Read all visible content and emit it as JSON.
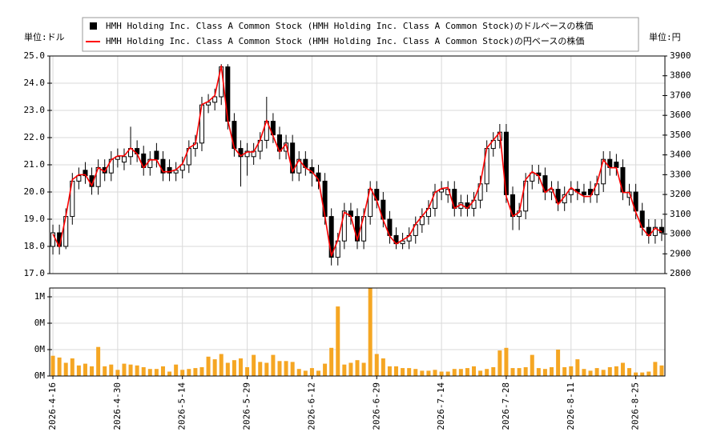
{
  "chart_data": [
    {
      "type": "candlestick",
      "y_label": "単位:ドル",
      "y2_label": "単位:円",
      "ylim": [
        17,
        25
      ],
      "yticks": [
        {
          "value": 17,
          "label": "17.0"
        },
        {
          "value": 18,
          "label": "18.0"
        },
        {
          "value": 19,
          "label": "19.0"
        },
        {
          "value": 20,
          "label": "20.0"
        },
        {
          "value": 21,
          "label": "21.0"
        },
        {
          "value": 22,
          "label": "22.0"
        },
        {
          "value": 23,
          "label": "23.0"
        },
        {
          "value": 24,
          "label": "24.0"
        },
        {
          "value": 25,
          "label": "25.0"
        }
      ],
      "y2lim": [
        2800,
        3900
      ],
      "y2ticks": [
        2800,
        2900,
        3000,
        3100,
        3200,
        3300,
        3400,
        3500,
        3600,
        3700,
        3800,
        3900
      ],
      "grid": true,
      "series": [
        {
          "name": "HMH Holding Inc. Class A Common Stock (HMH Holding Inc. Class A Common Stock)のドルベースの株価",
          "color": "#000000",
          "open": [
            18.0,
            18.5,
            18.0,
            19.1,
            20.4,
            20.8,
            20.6,
            20.2,
            20.9,
            20.7,
            21.2,
            21.1,
            21.3,
            21.6,
            21.4,
            20.9,
            21.5,
            21.2,
            20.9,
            20.7,
            20.8,
            21.0,
            21.6,
            21.8,
            23.2,
            23.3,
            23.5,
            24.6,
            22.6,
            21.6,
            21.3,
            21.3,
            21.5,
            21.9,
            22.6,
            22.1,
            21.5,
            21.8,
            20.7,
            21.2,
            20.9,
            20.7,
            20.4,
            19.1,
            17.6,
            18.2,
            19.3,
            19.1,
            18.2,
            19.1,
            20.1,
            19.7,
            19.0,
            18.4,
            18.1,
            18.2,
            18.4,
            18.8,
            19.1,
            19.4,
            20.0,
            19.9,
            20.1,
            19.4,
            19.6,
            19.4,
            19.7,
            20.3,
            21.6,
            21.9,
            22.2,
            19.9,
            19.1,
            19.3,
            20.4,
            20.7,
            20.6,
            20.0,
            20.1,
            19.6,
            19.9,
            20.1,
            20.0,
            20.1,
            19.9,
            20.3,
            21.2,
            21.1,
            20.9,
            19.8,
            20.0,
            19.3,
            18.7,
            18.4,
            18.7
          ],
          "high": [
            18.8,
            18.8,
            19.4,
            20.7,
            20.9,
            21.1,
            20.9,
            21.2,
            21.2,
            21.5,
            21.6,
            21.6,
            22.4,
            21.9,
            21.7,
            21.5,
            21.8,
            21.5,
            21.2,
            21.1,
            21.3,
            21.9,
            22.1,
            23.5,
            23.6,
            23.8,
            24.7,
            24.7,
            22.9,
            21.9,
            21.8,
            21.8,
            22.2,
            23.5,
            22.9,
            22.4,
            22.1,
            22.1,
            21.5,
            21.5,
            21.2,
            21.0,
            20.7,
            19.4,
            18.5,
            19.6,
            19.6,
            19.4,
            19.4,
            20.4,
            20.4,
            20.0,
            19.3,
            18.7,
            18.5,
            18.7,
            19.1,
            19.4,
            19.7,
            20.3,
            20.4,
            20.4,
            20.4,
            19.9,
            19.9,
            20.0,
            20.6,
            21.9,
            22.2,
            22.5,
            22.5,
            20.2,
            19.6,
            20.7,
            21.0,
            21.0,
            20.9,
            20.4,
            20.4,
            20.2,
            20.4,
            20.4,
            20.3,
            20.4,
            20.6,
            21.5,
            21.5,
            21.4,
            21.2,
            20.3,
            20.3,
            19.6,
            19.0,
            19.0,
            19.0
          ],
          "low": [
            17.7,
            17.7,
            17.9,
            18.8,
            20.1,
            20.3,
            19.9,
            19.9,
            20.4,
            20.4,
            20.9,
            20.8,
            21.0,
            21.1,
            20.6,
            20.6,
            20.9,
            20.4,
            20.4,
            20.4,
            20.5,
            20.7,
            21.3,
            21.5,
            22.9,
            23.0,
            23.2,
            22.3,
            21.3,
            20.2,
            20.6,
            21.0,
            21.2,
            21.6,
            21.8,
            21.2,
            21.2,
            20.4,
            20.4,
            20.6,
            20.2,
            20.1,
            18.8,
            17.3,
            17.3,
            17.9,
            18.8,
            17.9,
            17.9,
            18.8,
            19.4,
            18.7,
            18.1,
            17.9,
            17.9,
            17.9,
            18.1,
            18.5,
            18.8,
            19.1,
            19.7,
            19.6,
            19.1,
            19.1,
            19.1,
            19.1,
            19.4,
            20.0,
            21.3,
            21.6,
            19.6,
            18.6,
            18.6,
            19.0,
            20.1,
            20.3,
            19.7,
            19.7,
            19.3,
            19.3,
            19.6,
            19.7,
            19.6,
            19.6,
            19.6,
            20.0,
            20.6,
            20.6,
            19.7,
            19.5,
            19.0,
            18.4,
            18.1,
            18.1,
            18.2
          ],
          "close": [
            18.5,
            18.0,
            19.1,
            20.4,
            20.6,
            20.6,
            20.2,
            20.9,
            20.7,
            21.2,
            21.3,
            21.3,
            21.6,
            21.4,
            20.9,
            21.2,
            21.2,
            20.7,
            20.7,
            20.8,
            21.0,
            21.6,
            21.8,
            23.2,
            23.3,
            23.5,
            24.6,
            22.6,
            21.6,
            21.3,
            21.5,
            21.5,
            21.9,
            22.6,
            22.1,
            21.5,
            21.8,
            20.7,
            21.2,
            20.9,
            20.7,
            20.4,
            19.1,
            17.6,
            18.2,
            19.3,
            19.1,
            18.2,
            19.1,
            20.1,
            19.7,
            19.0,
            18.4,
            18.1,
            18.2,
            18.4,
            18.8,
            19.1,
            19.4,
            20.0,
            20.1,
            20.1,
            19.4,
            19.6,
            19.4,
            19.7,
            20.3,
            21.6,
            21.9,
            22.2,
            19.9,
            19.1,
            19.3,
            20.4,
            20.7,
            20.6,
            20.0,
            20.1,
            19.6,
            19.9,
            20.1,
            20.0,
            19.9,
            19.9,
            20.3,
            21.2,
            20.9,
            20.9,
            20.0,
            20.0,
            19.3,
            18.7,
            18.4,
            18.7,
            18.5
          ]
        },
        {
          "name": "HMH Holding Inc. Class A Common Stock (HMH Holding Inc. Class A Common Stock)の円ベースの株価",
          "color": "#ff0000",
          "axis": "y2",
          "values": [
            3000,
            2935,
            3090,
            3275,
            3300,
            3300,
            3245,
            3335,
            3315,
            3375,
            3395,
            3395,
            3435,
            3405,
            3335,
            3375,
            3375,
            3315,
            3315,
            3325,
            3355,
            3435,
            3455,
            3655,
            3670,
            3700,
            3850,
            3575,
            3435,
            3395,
            3415,
            3415,
            3475,
            3575,
            3495,
            3415,
            3455,
            3315,
            3375,
            3335,
            3315,
            3275,
            3090,
            2890,
            2970,
            3110,
            3090,
            2970,
            3090,
            3235,
            3170,
            3070,
            2990,
            2950,
            2970,
            2990,
            3050,
            3090,
            3130,
            3210,
            3230,
            3235,
            3130,
            3150,
            3130,
            3170,
            3255,
            3435,
            3475,
            3515,
            3190,
            3090,
            3110,
            3275,
            3315,
            3295,
            3210,
            3235,
            3150,
            3190,
            3235,
            3210,
            3190,
            3190,
            3255,
            3375,
            3335,
            3335,
            3210,
            3210,
            3110,
            3030,
            2990,
            3030,
            3010
          ]
        }
      ]
    },
    {
      "type": "bar",
      "categories": [
        "2026-4-16",
        null,
        null,
        null,
        null,
        null,
        null,
        null,
        null,
        null,
        "2026-4-30",
        null,
        null,
        null,
        null,
        null,
        null,
        null,
        null,
        null,
        "2026-5-14",
        null,
        null,
        null,
        null,
        null,
        null,
        null,
        null,
        null,
        "2026-5-29",
        null,
        null,
        null,
        null,
        null,
        null,
        null,
        null,
        null,
        "2026-6-12",
        null,
        null,
        null,
        null,
        null,
        null,
        null,
        null,
        null,
        "2026-6-29",
        null,
        null,
        null,
        null,
        null,
        null,
        null,
        null,
        null,
        "2026-7-14",
        null,
        null,
        null,
        null,
        null,
        null,
        null,
        null,
        null,
        "2026-7-28",
        null,
        null,
        null,
        null,
        null,
        null,
        null,
        null,
        null,
        "2026-8-11",
        null,
        null,
        null,
        null,
        null,
        null,
        null,
        null,
        null,
        "2026-8-25",
        null,
        null,
        null,
        null
      ],
      "color": "#f5a623",
      "values": [
        230000,
        210000,
        150000,
        200000,
        120000,
        140000,
        110000,
        330000,
        110000,
        130000,
        70000,
        140000,
        130000,
        120000,
        100000,
        80000,
        80000,
        110000,
        50000,
        130000,
        70000,
        80000,
        90000,
        100000,
        220000,
        190000,
        250000,
        150000,
        180000,
        200000,
        100000,
        240000,
        160000,
        150000,
        240000,
        170000,
        170000,
        160000,
        80000,
        60000,
        90000,
        60000,
        140000,
        320000,
        790000,
        130000,
        150000,
        180000,
        150000,
        1000000,
        250000,
        200000,
        110000,
        110000,
        90000,
        90000,
        80000,
        60000,
        60000,
        70000,
        50000,
        50000,
        80000,
        80000,
        90000,
        110000,
        60000,
        80000,
        100000,
        290000,
        320000,
        90000,
        90000,
        100000,
        240000,
        90000,
        80000,
        100000,
        300000,
        100000,
        110000,
        190000,
        80000,
        60000,
        90000,
        70000,
        100000,
        110000,
        150000,
        90000,
        40000,
        40000,
        50000,
        160000,
        120000
      ],
      "ylim": [
        0,
        1000000
      ],
      "yticks": [
        {
          "value": 0,
          "label": "0M"
        },
        {
          "value": 300000,
          "label": "0M"
        },
        {
          "value": 600000,
          "label": "0M"
        },
        {
          "value": 900000,
          "label": "1M"
        }
      ],
      "grid": true
    }
  ]
}
